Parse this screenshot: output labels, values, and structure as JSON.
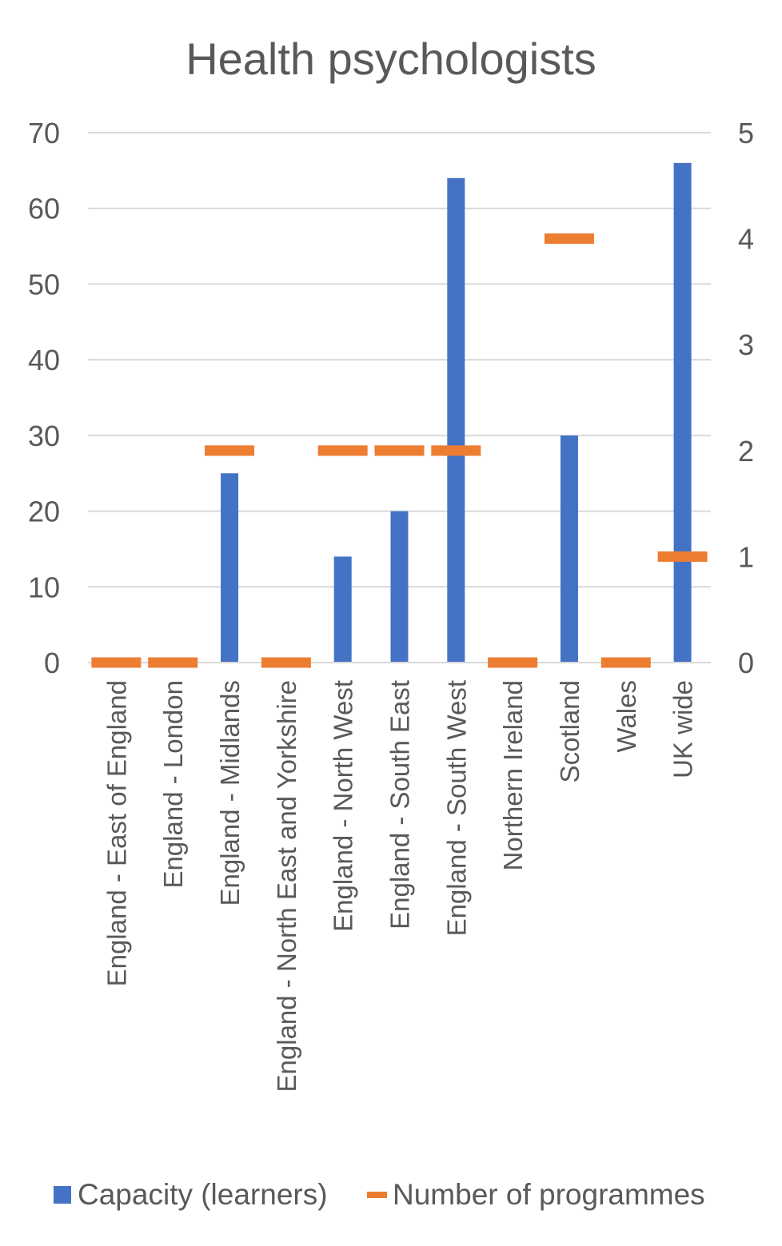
{
  "chart_data": {
    "type": "bar",
    "title": "Health psychologists",
    "categories": [
      "England - East of England",
      "England - London",
      "England - Midlands",
      "England - North East and Yorkshire",
      "England - North West",
      "England - South East",
      "England - South West",
      "Northern Ireland",
      "Scotland",
      "Wales",
      "UK wide"
    ],
    "series": [
      {
        "name": "Capacity (learners)",
        "type": "bar",
        "axis": "left",
        "color": "#4472C4",
        "values": [
          0,
          0,
          25,
          0,
          14,
          20,
          64,
          0,
          30,
          0,
          66
        ]
      },
      {
        "name": "Number of programmes",
        "type": "marker-dash",
        "axis": "right",
        "color": "#ED7D31",
        "values": [
          0,
          0,
          2,
          0,
          2,
          2,
          2,
          0,
          4,
          0,
          1
        ]
      }
    ],
    "y_left": {
      "min": 0,
      "max": 70,
      "ticks": [
        0,
        10,
        20,
        30,
        40,
        50,
        60,
        70
      ]
    },
    "y_right": {
      "min": 0,
      "max": 5,
      "ticks": [
        0,
        1,
        2,
        3,
        4,
        5
      ]
    },
    "grid": true,
    "gridline_color": "#D9D9D9",
    "text_color": "#595959",
    "legend_position": "bottom"
  }
}
